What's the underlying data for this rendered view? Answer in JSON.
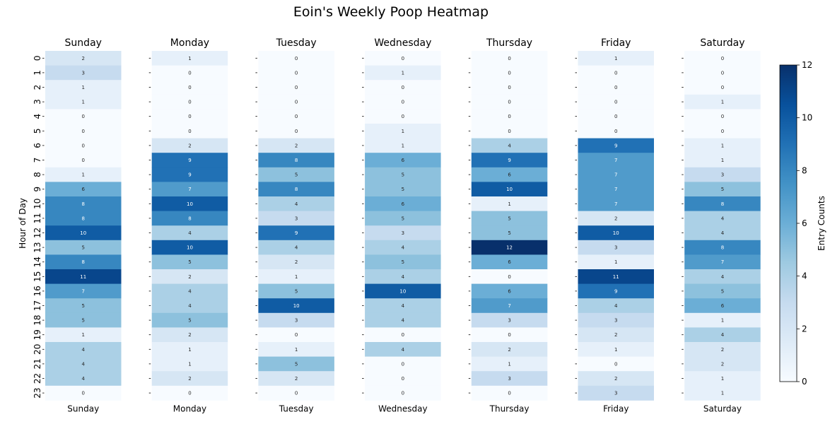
{
  "chart_data": {
    "type": "heatmap",
    "title": "Eoin's Weekly Poop Heatmap",
    "ylabel": "Hour of Day",
    "colorbar_label": "Entry Counts",
    "hours": [
      "0",
      "1",
      "2",
      "3",
      "4",
      "5",
      "6",
      "7",
      "8",
      "9",
      "10",
      "11",
      "12",
      "13",
      "14",
      "15",
      "16",
      "17",
      "18",
      "19",
      "20",
      "21",
      "22",
      "23"
    ],
    "days": [
      {
        "name": "Sunday",
        "values": [
          2,
          3,
          1,
          1,
          0,
          0,
          0,
          0,
          1,
          6,
          8,
          8,
          10,
          5,
          8,
          11,
          7,
          5,
          5,
          1,
          4,
          4,
          4,
          0
        ]
      },
      {
        "name": "Monday",
        "values": [
          1,
          0,
          0,
          0,
          0,
          0,
          2,
          9,
          9,
          7,
          10,
          8,
          4,
          10,
          5,
          2,
          4,
          4,
          5,
          2,
          1,
          1,
          2,
          0
        ]
      },
      {
        "name": "Tuesday",
        "values": [
          0,
          0,
          0,
          0,
          0,
          0,
          2,
          8,
          5,
          8,
          4,
          3,
          9,
          4,
          2,
          1,
          5,
          10,
          3,
          0,
          1,
          5,
          2,
          0
        ]
      },
      {
        "name": "Wednesday",
        "values": [
          0,
          1,
          0,
          0,
          0,
          1,
          1,
          6,
          5,
          5,
          6,
          5,
          3,
          4,
          5,
          4,
          10,
          4,
          4,
          0,
          4,
          0,
          0,
          0
        ]
      },
      {
        "name": "Thursday",
        "values": [
          0,
          0,
          0,
          0,
          0,
          0,
          4,
          9,
          6,
          10,
          1,
          5,
          5,
          12,
          6,
          0,
          6,
          7,
          3,
          0,
          2,
          1,
          3,
          0
        ]
      },
      {
        "name": "Friday",
        "values": [
          1,
          0,
          0,
          0,
          0,
          0,
          9,
          7,
          7,
          7,
          7,
          2,
          10,
          3,
          1,
          11,
          9,
          4,
          3,
          2,
          1,
          0,
          2,
          3
        ]
      },
      {
        "name": "Saturday",
        "values": [
          0,
          0,
          0,
          1,
          0,
          0,
          1,
          1,
          3,
          5,
          8,
          4,
          4,
          8,
          7,
          4,
          5,
          6,
          1,
          4,
          2,
          2,
          1,
          1
        ]
      }
    ],
    "color_range": [
      0,
      12
    ],
    "colorbar_ticks": [
      "0",
      "2",
      "4",
      "6",
      "8",
      "10",
      "12"
    ],
    "colormap": "Blues"
  }
}
